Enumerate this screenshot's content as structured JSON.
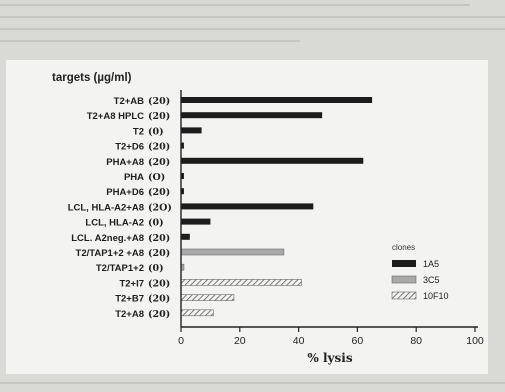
{
  "chart_data": {
    "type": "bar",
    "orientation": "horizontal",
    "title": "targets (µg/ml)",
    "xlabel": "% lysis",
    "xlim": [
      0,
      100
    ],
    "xticks": [
      "0",
      "20",
      "40",
      "60",
      "80",
      "100"
    ],
    "grid": false,
    "legend_title": "clones",
    "legend_position": "right",
    "series": [
      {
        "name": "1A5",
        "fill": "solid",
        "color": "#1c1c1c"
      },
      {
        "name": "3C5",
        "fill": "gray",
        "color": "#a9a9a9"
      },
      {
        "name": "10F10",
        "fill": "hatched",
        "color": "#6f6f6f"
      }
    ],
    "rows": [
      {
        "label": "T2+AB",
        "conc": "(20)",
        "value": 65,
        "series": "1A5"
      },
      {
        "label": "T2+A8 HPLC",
        "conc": "(20)",
        "value": 48,
        "series": "1A5"
      },
      {
        "label": "T2",
        "conc": "(0)",
        "value": 7,
        "series": "1A5"
      },
      {
        "label": "T2+D6",
        "conc": "(20)",
        "value": 1,
        "series": "1A5"
      },
      {
        "label": "PHA+A8",
        "conc": "(20)",
        "value": 62,
        "series": "1A5"
      },
      {
        "label": "PHA",
        "conc": "(O)",
        "value": 1,
        "series": "1A5"
      },
      {
        "label": "PHA+D6",
        "conc": "(20)",
        "value": 1,
        "series": "1A5"
      },
      {
        "label": "LCL, HLA-A2+A8",
        "conc": "(2O)",
        "value": 45,
        "series": "1A5"
      },
      {
        "label": "LCL, HLA-A2",
        "conc": "(0)",
        "value": 10,
        "series": "1A5"
      },
      {
        "label": "LCL. A2neg.+A8",
        "conc": "(20)",
        "value": 3,
        "series": "1A5"
      },
      {
        "label": "T2/TAP1+2 +A8",
        "conc": "(20)",
        "value": 35,
        "series": "3C5"
      },
      {
        "label": "T2/TAP1+2",
        "conc": "(0)",
        "value": 1,
        "series": "3C5"
      },
      {
        "label": "T2+I7",
        "conc": "(20)",
        "value": 41,
        "series": "10F10"
      },
      {
        "label": "T2+B7",
        "conc": "(20)",
        "value": 18,
        "series": "10F10"
      },
      {
        "label": "T2+A8",
        "conc": "(20)",
        "value": 11,
        "series": "10F10"
      }
    ]
  }
}
